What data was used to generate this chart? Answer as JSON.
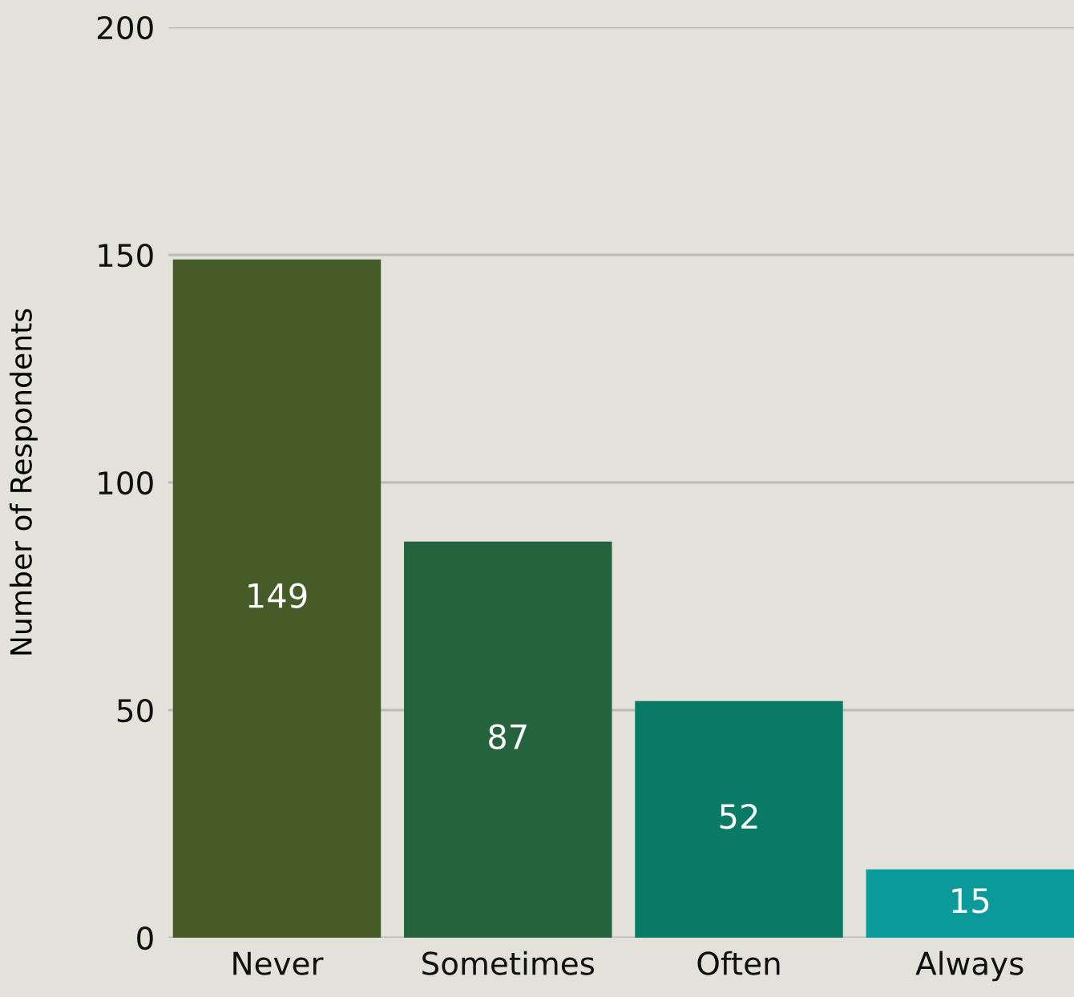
{
  "chart_data": {
    "type": "bar",
    "ylabel": "Number of Respondents",
    "categories": [
      "Never",
      "Sometimes",
      "Often",
      "Always"
    ],
    "values": [
      149,
      87,
      52,
      15
    ],
    "colors": [
      "#475b28",
      "#25623e",
      "#087a65",
      "#0a9a9a"
    ],
    "ylim": [
      0,
      200
    ],
    "yticks": [
      0,
      50,
      100,
      150,
      200
    ],
    "grid": "y",
    "data_labels": true
  }
}
